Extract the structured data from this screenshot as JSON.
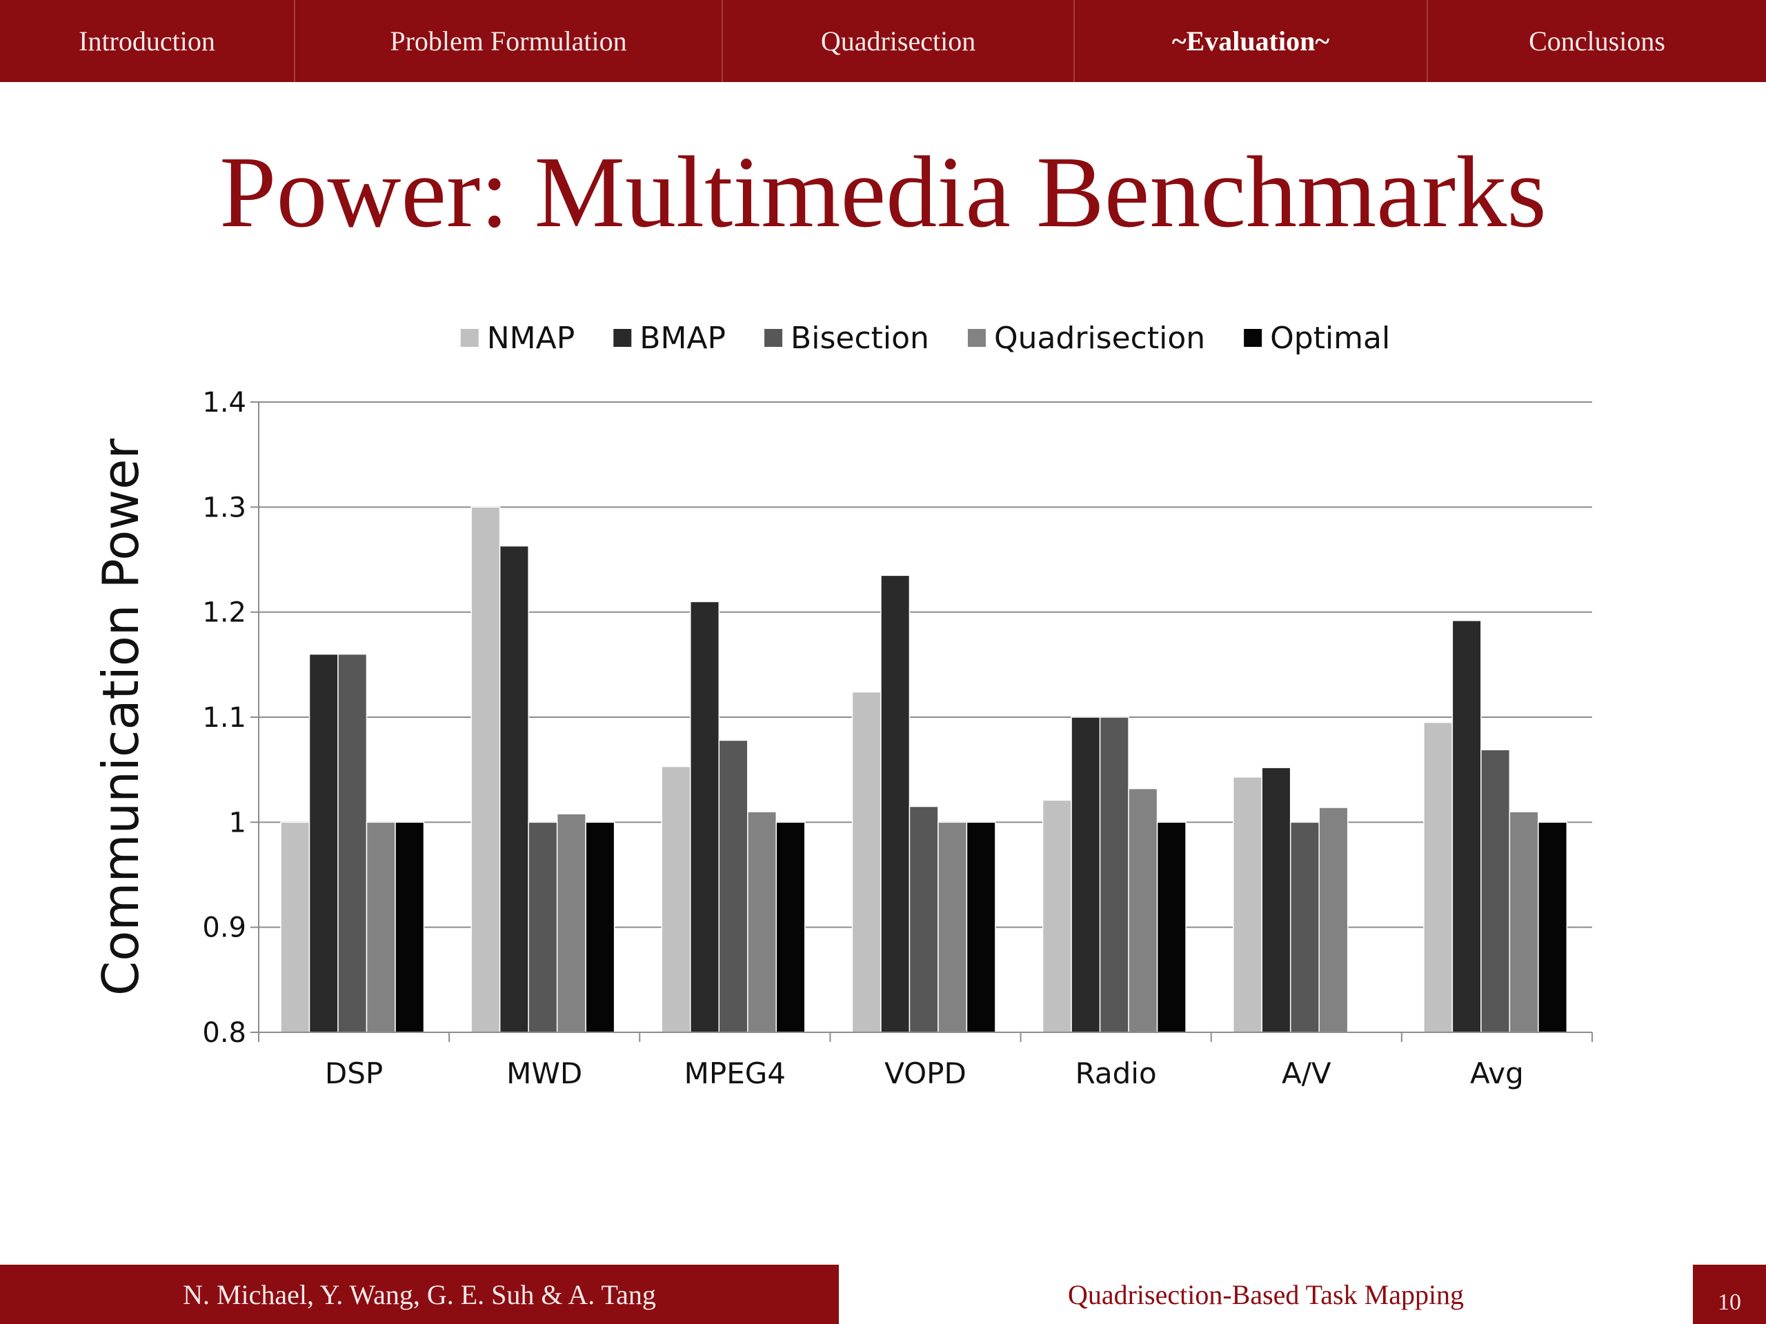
{
  "nav": {
    "items": [
      {
        "label": "Introduction",
        "active": false
      },
      {
        "label": "Problem Formulation",
        "active": false
      },
      {
        "label": "Quadrisection",
        "active": false
      },
      {
        "label": "~Evaluation~",
        "active": true
      },
      {
        "label": "Conclusions",
        "active": false
      }
    ],
    "bg_color": "#8b0c11"
  },
  "slide": {
    "title": "Power: Multimedia Benchmarks",
    "title_color": "#8b0c11"
  },
  "chart_data": {
    "type": "bar",
    "title": "",
    "xlabel": "",
    "ylabel": "Communication Power",
    "ylim": [
      0.8,
      1.4
    ],
    "yticks": [
      0.8,
      0.9,
      1,
      1.1,
      1.2,
      1.3,
      1.4
    ],
    "ytick_labels": [
      "0.8",
      "0.9",
      "1",
      "1.1",
      "1.2",
      "1.3",
      "1.4"
    ],
    "grid": true,
    "legend_position": "top",
    "categories": [
      "DSP",
      "MWD",
      "MPEG4",
      "VOPD",
      "Radio",
      "A/V",
      "Avg"
    ],
    "series": [
      {
        "name": "NMAP",
        "color": "#c0c0c0",
        "values": [
          1.0,
          1.3,
          1.053,
          1.124,
          1.021,
          1.043,
          1.095
        ]
      },
      {
        "name": "BMAP",
        "color": "#2a2a2a",
        "values": [
          1.16,
          1.263,
          1.21,
          1.235,
          1.1,
          1.052,
          1.192
        ]
      },
      {
        "name": "Bisection",
        "color": "#575757",
        "values": [
          1.16,
          1.0,
          1.078,
          1.015,
          1.1,
          1.0,
          1.069
        ]
      },
      {
        "name": "Quadrisection",
        "color": "#828282",
        "values": [
          1.0,
          1.008,
          1.01,
          1.0,
          1.032,
          1.014,
          1.01
        ]
      },
      {
        "name": "Optimal",
        "color": "#050505",
        "values": [
          1.0,
          1.0,
          1.0,
          1.0,
          1.0,
          null,
          1.0
        ]
      }
    ]
  },
  "footer": {
    "authors": "N. Michael, Y. Wang, G. E. Suh & A. Tang",
    "talk_title": "Quadrisection-Based Task Mapping",
    "page_number": "10"
  }
}
